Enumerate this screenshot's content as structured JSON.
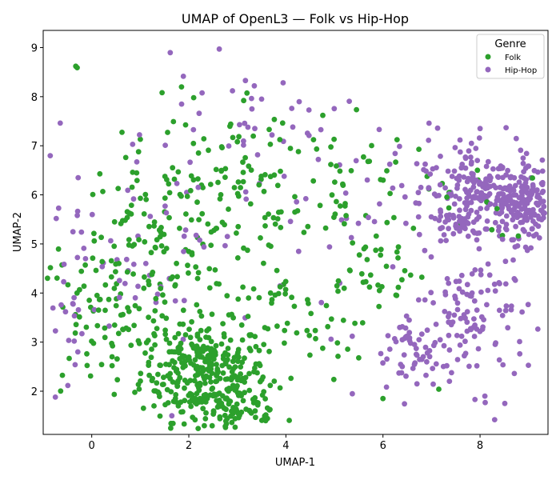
{
  "chart_data": {
    "type": "scatter",
    "title": "UMAP of OpenL3 — Folk vs Hip-Hop",
    "xlabel": "UMAP-1",
    "ylabel": "UMAP-2",
    "xlim": [
      -1.0,
      9.4
    ],
    "ylim": [
      1.12,
      9.35
    ],
    "xticks": [
      0,
      2,
      4,
      6,
      8
    ],
    "yticks": [
      2,
      3,
      4,
      5,
      6,
      7,
      8,
      9
    ],
    "legend": {
      "title": "Genre",
      "position": "top-right"
    },
    "grid": false,
    "series": [
      {
        "name": "Folk",
        "color": "#2ca02c",
        "clusters": [
          {
            "cx": 2.3,
            "cy": 2.4,
            "sx": 0.65,
            "sy": 0.5,
            "n": 320
          },
          {
            "cx": 3.0,
            "cy": 1.6,
            "sx": 0.55,
            "sy": 0.3,
            "n": 70
          },
          {
            "cx": 1.4,
            "cy": 4.8,
            "sx": 0.9,
            "sy": 1.1,
            "n": 160
          },
          {
            "cx": 0.1,
            "cy": 3.5,
            "sx": 0.6,
            "sy": 0.7,
            "n": 55
          },
          {
            "cx": 3.3,
            "cy": 6.2,
            "sx": 1.1,
            "sy": 1.0,
            "n": 70
          },
          {
            "cx": 5.0,
            "cy": 6.3,
            "sx": 0.8,
            "sy": 0.8,
            "n": 45
          },
          {
            "cx": 5.7,
            "cy": 4.5,
            "sx": 0.6,
            "sy": 0.4,
            "n": 35
          },
          {
            "cx": 4.4,
            "cy": 3.2,
            "sx": 0.5,
            "sy": 0.5,
            "n": 25
          },
          {
            "cx": 7.6,
            "cy": 5.9,
            "sx": 0.8,
            "sy": 0.4,
            "n": 18
          },
          {
            "cx": 3.6,
            "cy": 3.9,
            "sx": 0.3,
            "sy": 0.4,
            "n": 20
          }
        ],
        "extra_points": [
          [
            -0.33,
            8.62
          ],
          [
            -0.3,
            8.59
          ],
          [
            1.85,
            8.2
          ],
          [
            2.1,
            7.98
          ],
          [
            1.45,
            8.08
          ],
          [
            4.76,
            7.62
          ],
          [
            7.15,
            2.04
          ],
          [
            6.0,
            1.85
          ],
          [
            5.5,
            2.68
          ]
        ]
      },
      {
        "name": "Hip-Hop",
        "color": "#9467bd",
        "clusters": [
          {
            "cx": 8.3,
            "cy": 6.0,
            "sx": 0.7,
            "sy": 0.35,
            "n": 230
          },
          {
            "cx": 7.6,
            "cy": 5.4,
            "sx": 0.3,
            "sy": 0.12,
            "n": 45
          },
          {
            "cx": 9.0,
            "cy": 5.7,
            "sx": 0.25,
            "sy": 0.35,
            "n": 90
          },
          {
            "cx": 7.9,
            "cy": 3.5,
            "sx": 0.55,
            "sy": 0.7,
            "n": 110
          },
          {
            "cx": 6.6,
            "cy": 2.7,
            "sx": 0.45,
            "sy": 0.45,
            "n": 55
          },
          {
            "cx": 7.6,
            "cy": 6.9,
            "sx": 0.6,
            "sy": 0.3,
            "n": 25
          },
          {
            "cx": 3.1,
            "cy": 7.4,
            "sx": 1.0,
            "sy": 0.6,
            "n": 30
          },
          {
            "cx": 1.1,
            "cy": 5.5,
            "sx": 1.1,
            "sy": 1.1,
            "n": 55
          },
          {
            "cx": 5.2,
            "cy": 5.2,
            "sx": 1.3,
            "sy": 1.4,
            "n": 40
          },
          {
            "cx": -0.5,
            "cy": 3.6,
            "sx": 0.3,
            "sy": 1.0,
            "n": 22
          }
        ],
        "extra_points": [
          [
            2.9,
            8.12
          ],
          [
            3.35,
            8.22
          ],
          [
            3.5,
            7.95
          ],
          [
            3.3,
            7.75
          ],
          [
            8.3,
            1.42
          ],
          [
            8.1,
            1.9
          ],
          [
            8.0,
            7.35
          ],
          [
            -0.28,
            6.35
          ],
          [
            6.7,
            2.15
          ],
          [
            1.65,
            1.5
          ]
        ]
      }
    ]
  }
}
